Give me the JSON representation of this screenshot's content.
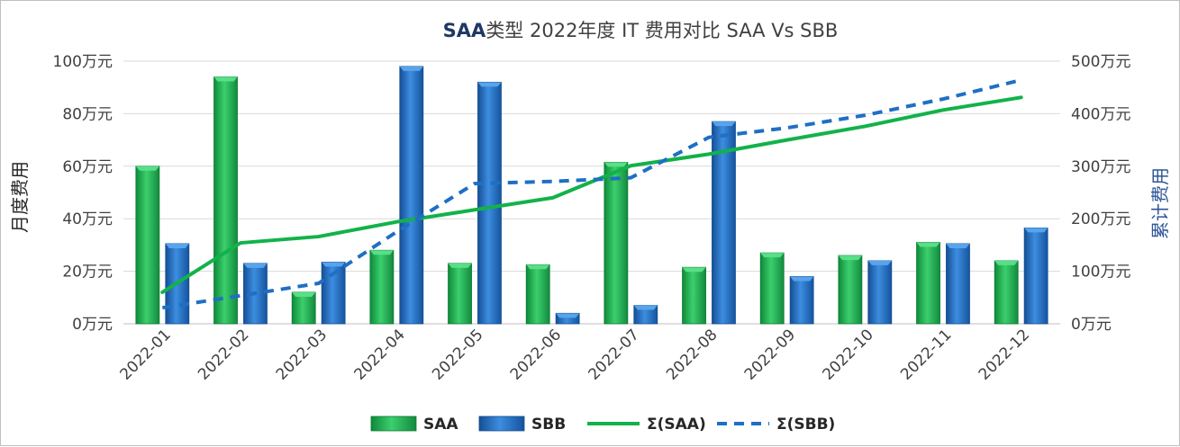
{
  "chart_data": {
    "type": "bar",
    "title_brand": "SAA",
    "title_rest": "类型 2022年度 IT 费用对比 SAA Vs SBB",
    "ylabel_left": "月度费用",
    "ylabel_right": "累计费用",
    "categories": [
      "2022-01",
      "2022-02",
      "2022-03",
      "2022-04",
      "2022-05",
      "2022-06",
      "2022-07",
      "2022-08",
      "2022-09",
      "2022-10",
      "2022-11",
      "2022-12"
    ],
    "ylim_left": [
      0,
      100
    ],
    "ylim_right": [
      0,
      500
    ],
    "yticks_left": [
      "0万元",
      "20万元",
      "40万元",
      "60万元",
      "80万元",
      "100万元"
    ],
    "yticks_right": [
      "0万元",
      "100万元",
      "200万元",
      "300万元",
      "400万元",
      "500万元"
    ],
    "grid": true,
    "legend_position": "bottom",
    "series": [
      {
        "name": "SAA",
        "kind": "bar",
        "axis": "left",
        "color": "#1fb34f",
        "values": [
          60,
          94,
          12,
          28,
          23,
          22.5,
          61.5,
          21.5,
          27,
          26,
          31,
          24
        ]
      },
      {
        "name": "SBB",
        "kind": "bar",
        "axis": "left",
        "color": "#1f6fc5",
        "values": [
          30.5,
          23,
          23.5,
          98,
          92,
          4,
          7,
          77,
          18,
          24,
          30.5,
          36.5
        ]
      },
      {
        "name": "Σ(SAA)",
        "kind": "line",
        "axis": "right",
        "color": "#12b24a",
        "dash": "solid",
        "values": [
          60,
          154,
          166,
          194,
          217,
          240,
          301,
          323,
          350,
          376,
          407,
          431
        ]
      },
      {
        "name": "Σ(SBB)",
        "kind": "line",
        "axis": "right",
        "color": "#1f6fc5",
        "dash": "dashed",
        "values": [
          30.5,
          53.5,
          77,
          175,
          267,
          271,
          278,
          355,
          373,
          397,
          428,
          464
        ]
      }
    ]
  }
}
